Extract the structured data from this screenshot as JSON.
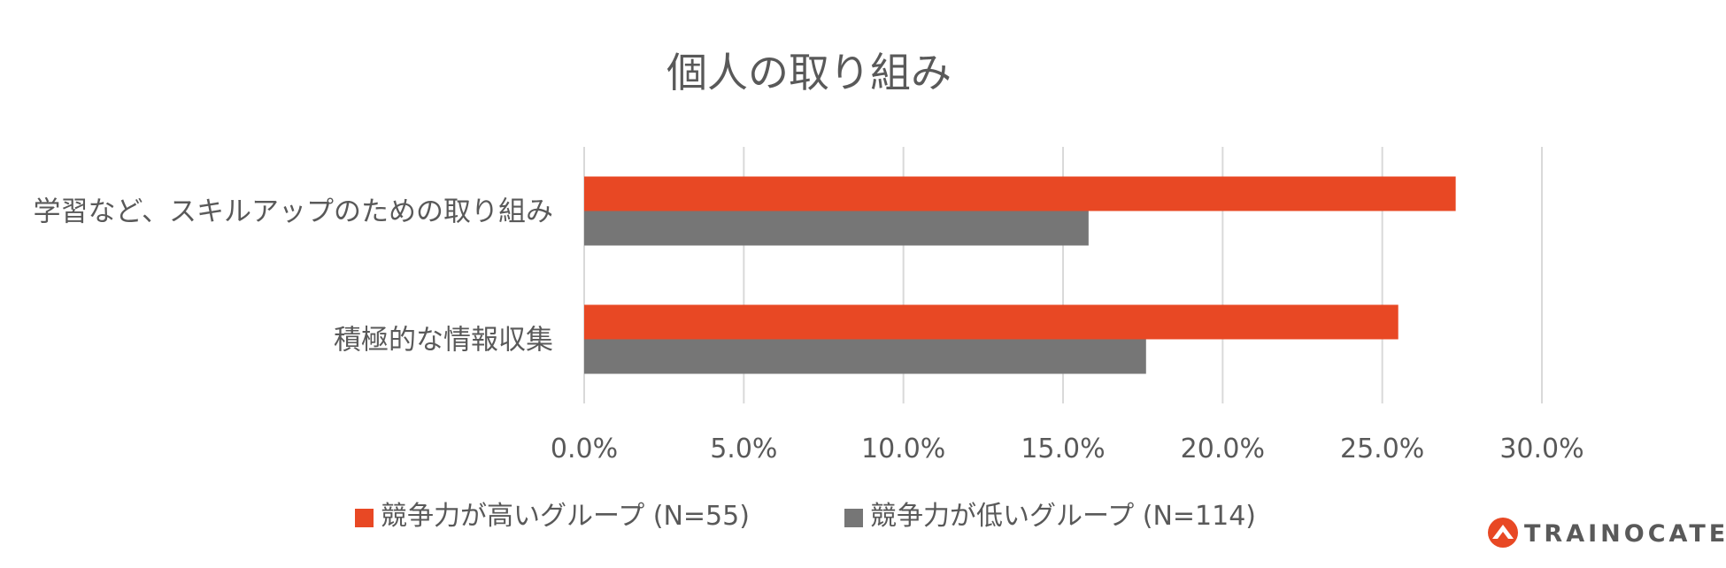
{
  "chart_data": {
    "type": "bar",
    "orientation": "horizontal",
    "title": "個人の取り組み",
    "categories": [
      "学習など、スキルアップのための取り組み",
      "積極的な情報収集"
    ],
    "series": [
      {
        "name": "競争力が高いグループ (N=55)",
        "color": "#e84824",
        "values": [
          27.3,
          25.5
        ]
      },
      {
        "name": "競争力が低いグループ (N=114)",
        "color": "#767676",
        "values": [
          15.8,
          17.6
        ]
      }
    ],
    "xlim": [
      0,
      30
    ],
    "xticks": [
      0,
      5,
      10,
      15,
      20,
      25,
      30
    ],
    "xtick_labels": [
      "0.0%",
      "5.0%",
      "10.0%",
      "15.0%",
      "20.0%",
      "25.0%",
      "30.0%"
    ],
    "grid": true,
    "legend_position": "bottom"
  },
  "logo": {
    "text": "TRAINOCATE",
    "color": "#e84824",
    "text_color": "#595959",
    "icon": "traincate-logo-icon"
  }
}
